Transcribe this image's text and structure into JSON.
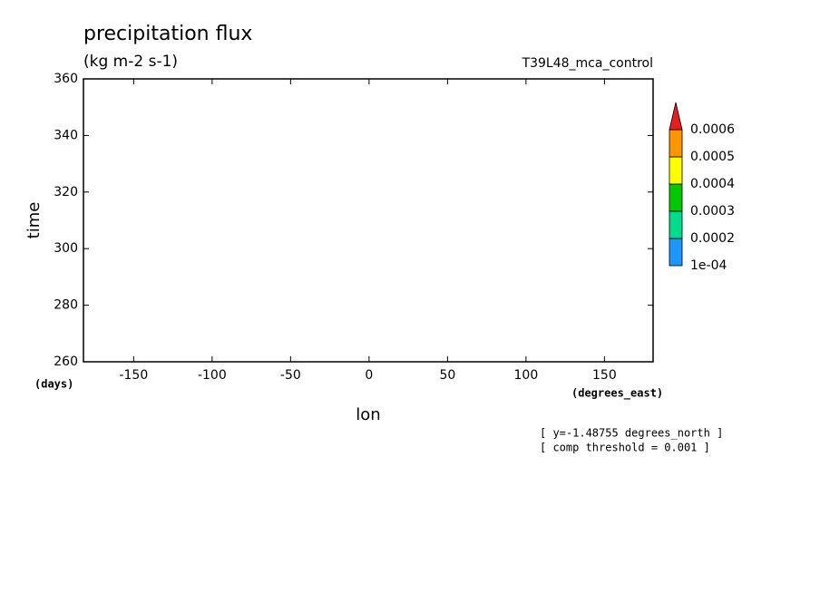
{
  "chart_data": {
    "type": "contour",
    "title": "precipitation flux",
    "subtitle": "(kg m-2 s-1)",
    "experiment": "T39L48_mca_control",
    "xlabel": "lon",
    "ylabel": "time",
    "x_units": "(degrees_east)",
    "y_units": "(days)",
    "notes": [
      "[ y=-1.48755 degrees_north ]",
      "[ comp threshold = 0.001 ]"
    ],
    "xlim": [
      -182,
      181
    ],
    "xticks": [
      -150,
      -100,
      -50,
      0,
      50,
      100,
      150
    ],
    "ylim": [
      260,
      360
    ],
    "yticks": [
      260,
      280,
      300,
      320,
      340,
      360
    ],
    "colorbar": {
      "levels": [
        {
          "value": 0.0001,
          "label": "1e-04"
        },
        0.0002,
        0.0003,
        0.0004,
        0.0005,
        0.0006
      ],
      "colors": [
        "#1e96ff",
        "#00dc8c",
        "#00c800",
        "#ffff00",
        "#ff9600",
        "#e61e1e"
      ]
    }
  }
}
